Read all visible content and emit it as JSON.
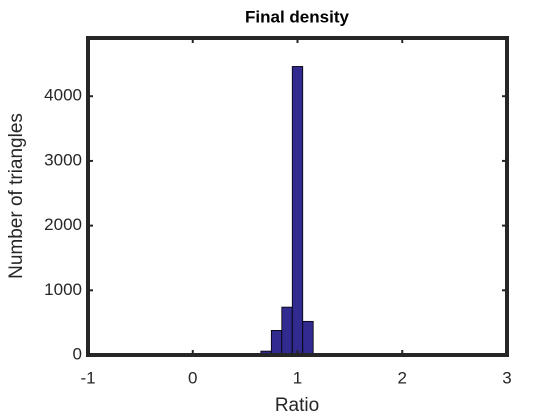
{
  "chart_data": {
    "type": "histogram",
    "title": "Final density",
    "xlabel": "Ratio",
    "ylabel": "Number of triangles",
    "bins": [
      0.65,
      0.75,
      0.85,
      0.95,
      1.05,
      1.15
    ],
    "values": [
      60,
      380,
      740,
      4460,
      520
    ],
    "color": "#312b8f",
    "xlim": [
      -1,
      3
    ],
    "xticks": [
      -1,
      0,
      1,
      2,
      3
    ],
    "ylim": [
      0,
      4900
    ],
    "yticks": [
      0,
      1000,
      2000,
      3000,
      4000
    ]
  }
}
